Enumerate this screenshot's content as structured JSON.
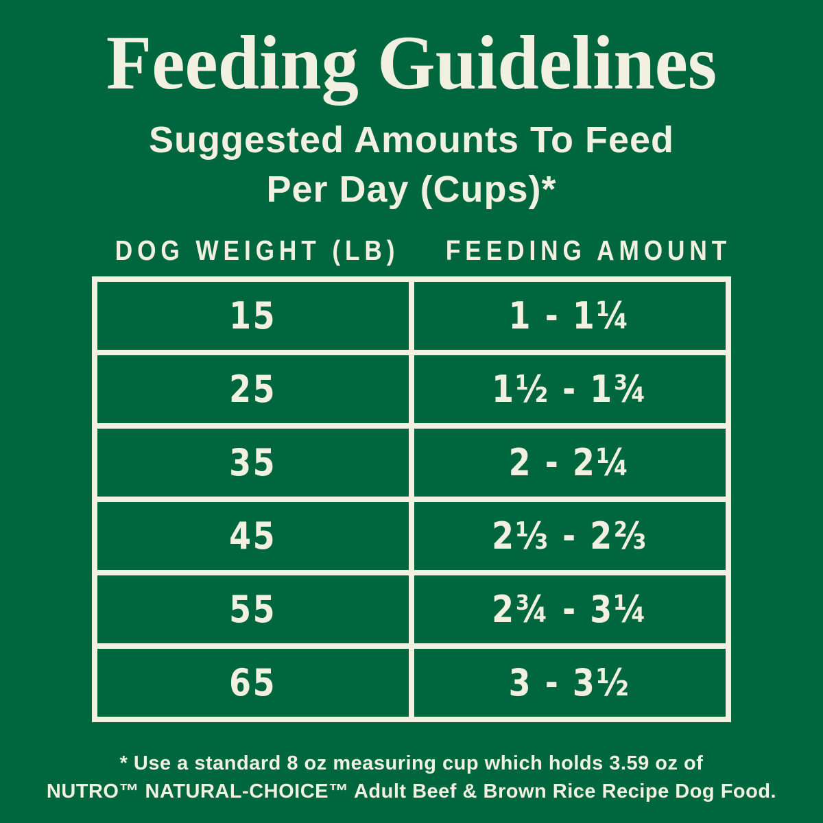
{
  "colors": {
    "background": "#00663E",
    "text_cream": "#F2F0E1"
  },
  "header": {
    "title": "Feeding Guidelines",
    "subtitle_line1": "Suggested Amounts To Feed",
    "subtitle_line2": "Per Day (Cups)*"
  },
  "table": {
    "columns": [
      "DOG WEIGHT (LB)",
      "FEEDING AMOUNT"
    ],
    "rows": [
      {
        "weight": "15",
        "amount": "1 - 1¼"
      },
      {
        "weight": "25",
        "amount": "1½ - 1¾"
      },
      {
        "weight": "35",
        "amount": "2 - 2¼"
      },
      {
        "weight": "45",
        "amount": "2⅓ - 2⅔"
      },
      {
        "weight": "55",
        "amount": "2¾ - 3¼"
      },
      {
        "weight": "65",
        "amount": "3 - 3½"
      }
    ]
  },
  "footnote": {
    "line1": "* Use a standard 8 oz measuring cup which holds 3.59 oz of",
    "line2": "NUTRO™ NATURAL-CHOICE™ Adult Beef & Brown Rice Recipe Dog Food."
  }
}
